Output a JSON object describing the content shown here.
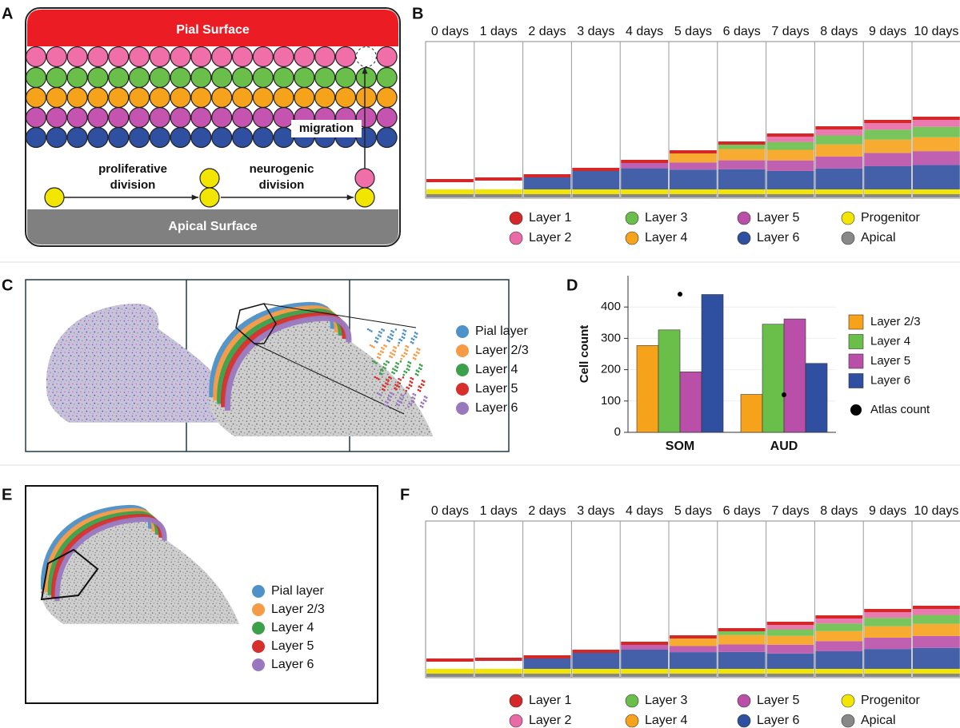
{
  "figure": {
    "panel_labels": [
      "A",
      "B",
      "C",
      "D",
      "E",
      "F"
    ],
    "A": {
      "pial": "Pial Surface",
      "apical": "Apical Surface",
      "migration": "migration",
      "proliferative": [
        "proliferative",
        "division"
      ],
      "neurogenic": [
        "neurogenic",
        "division"
      ]
    },
    "B": {
      "days": [
        "0 days",
        "1 days",
        "2 days",
        "3 days",
        "4 days",
        "5 days",
        "6 days",
        "7 days",
        "8 days",
        "9 days",
        "10 days"
      ],
      "legend": [
        "Layer 1",
        "Layer 3",
        "Layer 5",
        "Progenitor",
        "Layer 2",
        "Layer 4",
        "Layer 6",
        "Apical"
      ]
    },
    "C": {
      "legend": [
        "Pial layer",
        "Layer 2/3",
        "Layer 4",
        "Layer 5",
        "Layer 6"
      ]
    },
    "E": {
      "legend": [
        "Pial layer",
        "Layer 2/3",
        "Layer 4",
        "Layer 5",
        "Layer 6"
      ]
    },
    "F": {
      "days": [
        "0 days",
        "1 days",
        "2 days",
        "3 days",
        "4 days",
        "5 days",
        "6 days",
        "7 days",
        "8 days",
        "9 days",
        "10 days"
      ],
      "legend": [
        "Layer 1",
        "Layer 3",
        "Layer 5",
        "Progenitor",
        "Layer 2",
        "Layer 4",
        "Layer 6",
        "Apical"
      ]
    }
  },
  "chart_data": {
    "type": "bar",
    "ylabel": "Cell count",
    "categories": [
      "SOM",
      "AUD"
    ],
    "series": [
      {
        "name": "Layer 2/3",
        "color": "#f7a21b",
        "values": [
          277,
          121
        ]
      },
      {
        "name": "Layer 4",
        "color": "#6abf4b",
        "values": [
          327,
          345
        ]
      },
      {
        "name": "Layer 5",
        "color": "#b94fa8",
        "values": [
          193,
          362
        ]
      },
      {
        "name": "Layer 6",
        "color": "#2f4fa0",
        "values": [
          440,
          220
        ]
      },
      {
        "name": "Atlas count",
        "color": "#000000",
        "type": "point",
        "values": [
          441,
          120
        ]
      }
    ],
    "ylim": [
      0,
      500
    ],
    "yticks": [
      0,
      100,
      200,
      300,
      400
    ],
    "grid": true
  }
}
